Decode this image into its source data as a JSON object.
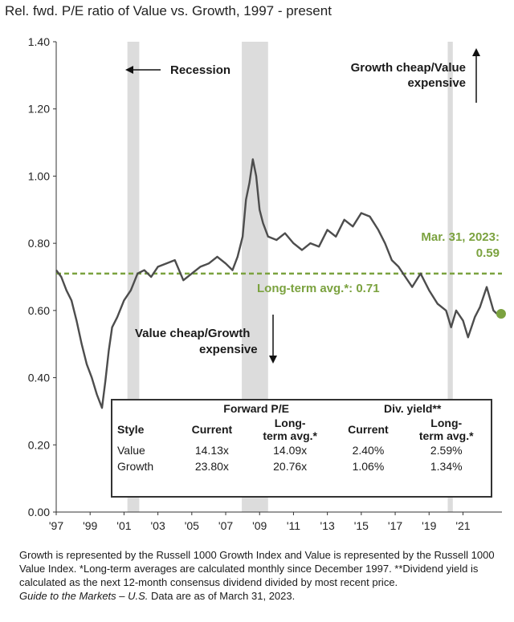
{
  "title": "Rel. fwd. P/E ratio of Value vs. Growth, 1997 - present",
  "colors": {
    "line": "#4d4d4d",
    "avg": "#7ba23f",
    "recession": "#dcdcdc",
    "dot": "#7ba23f"
  },
  "annotations": {
    "recession": "Recession",
    "growth_cheap": [
      "Growth cheap/Value",
      "expensive"
    ],
    "value_cheap": [
      "Value cheap/Growth",
      "expensive"
    ],
    "latest": [
      "Mar. 31, 2023:",
      "0.59"
    ],
    "avg_label": "Long-term avg.*: 0.71"
  },
  "chart_data": {
    "type": "line",
    "title": "Rel. fwd. P/E ratio of Value vs. Growth, 1997 - present",
    "ylim": [
      0,
      1.4
    ],
    "y_ticks": [
      "0.00",
      "0.20",
      "0.40",
      "0.60",
      "0.80",
      "1.00",
      "1.20",
      "1.40"
    ],
    "x_ticks": [
      "'97",
      "'99",
      "'01",
      "'03",
      "'05",
      "'07",
      "'09",
      "'11",
      "'13",
      "'15",
      "'17",
      "'19",
      "'21"
    ],
    "xlim": [
      1997.0,
      2023.3
    ],
    "long_term_avg": 0.71,
    "latest": {
      "x": 2023.25,
      "y": 0.59
    },
    "recessions": [
      [
        2001.2,
        2001.9
      ],
      [
        2007.95,
        2009.5
      ],
      [
        2020.1,
        2020.4
      ]
    ],
    "series": [
      {
        "x": [
          1997.0,
          1997.3,
          1997.6,
          1997.9,
          1998.2,
          1998.5,
          1998.8,
          1999.1,
          1999.4,
          1999.7,
          1999.9,
          2000.1,
          2000.3,
          2000.6,
          2001.0,
          2001.4,
          2001.8,
          2002.2,
          2002.6,
          2003.0,
          2003.5,
          2004.0,
          2004.5,
          2005.0,
          2005.5,
          2006.0,
          2006.5,
          2007.0,
          2007.4,
          2007.7,
          2008.0,
          2008.2,
          2008.4,
          2008.6,
          2008.8,
          2009.0,
          2009.2,
          2009.5,
          2010.0,
          2010.5,
          2011.0,
          2011.5,
          2012.0,
          2012.5,
          2013.0,
          2013.5,
          2014.0,
          2014.5,
          2015.0,
          2015.5,
          2016.0,
          2016.4,
          2016.8,
          2017.2,
          2017.6,
          2018.0,
          2018.5,
          2019.0,
          2019.5,
          2020.0,
          2020.3,
          2020.6,
          2021.0,
          2021.3,
          2021.7,
          2022.0,
          2022.4,
          2022.8,
          2023.0
        ],
        "values": [
          0.72,
          0.7,
          0.66,
          0.63,
          0.57,
          0.5,
          0.44,
          0.4,
          0.35,
          0.31,
          0.39,
          0.48,
          0.55,
          0.58,
          0.63,
          0.66,
          0.71,
          0.72,
          0.7,
          0.73,
          0.74,
          0.75,
          0.69,
          0.71,
          0.73,
          0.74,
          0.76,
          0.74,
          0.72,
          0.76,
          0.82,
          0.93,
          0.98,
          1.05,
          1.0,
          0.9,
          0.86,
          0.82,
          0.81,
          0.83,
          0.8,
          0.78,
          0.8,
          0.79,
          0.84,
          0.82,
          0.87,
          0.85,
          0.89,
          0.88,
          0.84,
          0.8,
          0.75,
          0.73,
          0.7,
          0.67,
          0.71,
          0.66,
          0.62,
          0.6,
          0.55,
          0.6,
          0.57,
          0.52,
          0.58,
          0.61,
          0.67,
          0.6,
          0.59
        ]
      }
    ]
  },
  "table": {
    "groups": [
      "Forward P/E",
      "Div. yield**"
    ],
    "headers": [
      [
        "Style",
        ""
      ],
      [
        "Current",
        ""
      ],
      [
        "Long-",
        "term avg.*"
      ],
      [
        "Current",
        ""
      ],
      [
        "Long-",
        "term avg.*"
      ]
    ],
    "rows": [
      [
        "Value",
        "14.13x",
        "14.09x",
        "2.40%",
        "2.59%"
      ],
      [
        "Growth",
        "23.80x",
        "20.76x",
        "1.06%",
        "1.34%"
      ]
    ]
  },
  "footnote": {
    "text": "Growth is represented by the Russell 1000 Growth Index and Value is represented by the Russell 1000 Value Index. *Long-term averages are calculated monthly since December 1997. **Dividend yield is calculated as the next 12-month consensus dividend divided by most recent price.",
    "source_italic": "Guide to the Markets – U.S.",
    "source_rest": " Data are as of March 31, 2023."
  }
}
